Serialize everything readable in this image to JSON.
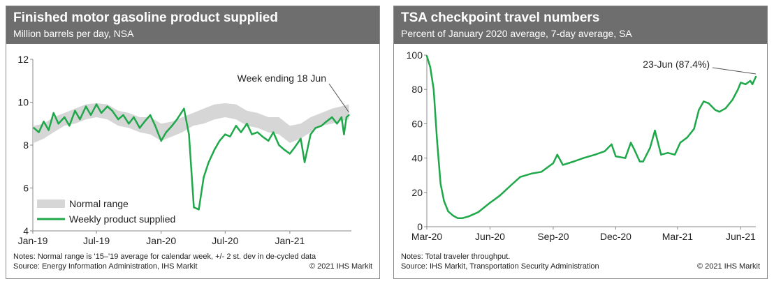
{
  "chart_data": [
    {
      "type": "line",
      "title": "Finished motor gasoline product supplied",
      "subtitle": "Million barrels per day, NSA",
      "x_range": [
        "2019-01-01",
        "2021-06-25"
      ],
      "ylim": [
        4,
        12
      ],
      "y_ticks": [
        "4",
        "6",
        "8",
        "10",
        "12"
      ],
      "x_ticks": [
        {
          "label": "Jan-19",
          "date": "2019-01-01"
        },
        {
          "label": "Jul-19",
          "date": "2019-07-01"
        },
        {
          "label": "Jan-20",
          "date": "2020-01-01"
        },
        {
          "label": "Jul-20",
          "date": "2020-07-01"
        },
        {
          "label": "Jan-21",
          "date": "2021-01-01"
        }
      ],
      "annotation": "Week ending 18 Jun",
      "legend": {
        "position": "bottom-left",
        "band_label": "Normal range",
        "line_label": "Weekly product supplied"
      },
      "band": {
        "name": "Normal range",
        "points": [
          [
            "2019-01-04",
            8.1,
            8.9
          ],
          [
            "2019-02-01",
            8.3,
            9.0
          ],
          [
            "2019-03-01",
            8.6,
            9.3
          ],
          [
            "2019-04-01",
            8.9,
            9.5
          ],
          [
            "2019-05-01",
            9.0,
            9.7
          ],
          [
            "2019-06-01",
            9.2,
            9.9
          ],
          [
            "2019-07-01",
            9.3,
            9.95
          ],
          [
            "2019-08-01",
            9.2,
            9.9
          ],
          [
            "2019-09-01",
            8.9,
            9.6
          ],
          [
            "2019-10-01",
            8.8,
            9.5
          ],
          [
            "2019-11-01",
            8.6,
            9.3
          ],
          [
            "2019-12-01",
            8.5,
            9.3
          ],
          [
            "2020-01-01",
            8.2,
            9.0
          ],
          [
            "2020-02-01",
            8.4,
            9.1
          ],
          [
            "2020-03-01",
            8.6,
            9.3
          ],
          [
            "2020-04-01",
            8.9,
            9.5
          ],
          [
            "2020-05-01",
            9.0,
            9.7
          ],
          [
            "2020-06-01",
            9.2,
            9.9
          ],
          [
            "2020-07-01",
            9.3,
            9.95
          ],
          [
            "2020-08-01",
            9.2,
            9.9
          ],
          [
            "2020-09-01",
            8.9,
            9.6
          ],
          [
            "2020-10-01",
            8.8,
            9.5
          ],
          [
            "2020-11-01",
            8.6,
            9.3
          ],
          [
            "2020-12-01",
            8.5,
            9.3
          ],
          [
            "2021-01-01",
            8.1,
            8.9
          ],
          [
            "2021-02-01",
            8.3,
            9.0
          ],
          [
            "2021-03-01",
            8.6,
            9.3
          ],
          [
            "2021-04-01",
            8.9,
            9.5
          ],
          [
            "2021-05-01",
            9.0,
            9.7
          ],
          [
            "2021-06-18",
            9.2,
            9.9
          ]
        ]
      },
      "series": [
        {
          "name": "Weekly product supplied",
          "points": [
            [
              "2019-01-04",
              8.8
            ],
            [
              "2019-01-18",
              8.6
            ],
            [
              "2019-02-01",
              9.1
            ],
            [
              "2019-02-15",
              8.7
            ],
            [
              "2019-03-01",
              9.5
            ],
            [
              "2019-03-15",
              9.0
            ],
            [
              "2019-04-01",
              9.3
            ],
            [
              "2019-04-15",
              8.9
            ],
            [
              "2019-05-01",
              9.6
            ],
            [
              "2019-05-15",
              9.2
            ],
            [
              "2019-06-01",
              9.8
            ],
            [
              "2019-06-15",
              9.4
            ],
            [
              "2019-07-01",
              9.9
            ],
            [
              "2019-07-15",
              9.5
            ],
            [
              "2019-08-01",
              9.8
            ],
            [
              "2019-08-15",
              9.6
            ],
            [
              "2019-09-01",
              9.2
            ],
            [
              "2019-09-15",
              9.4
            ],
            [
              "2019-10-01",
              9.0
            ],
            [
              "2019-10-15",
              9.3
            ],
            [
              "2019-11-01",
              8.8
            ],
            [
              "2019-11-15",
              9.1
            ],
            [
              "2019-12-01",
              9.4
            ],
            [
              "2019-12-15",
              8.9
            ],
            [
              "2020-01-01",
              8.2
            ],
            [
              "2020-01-15",
              8.6
            ],
            [
              "2020-02-01",
              8.9
            ],
            [
              "2020-02-15",
              9.2
            ],
            [
              "2020-03-06",
              9.7
            ],
            [
              "2020-03-20",
              8.5
            ],
            [
              "2020-03-27",
              6.8
            ],
            [
              "2020-04-03",
              5.1
            ],
            [
              "2020-04-17",
              5.0
            ],
            [
              "2020-05-01",
              6.5
            ],
            [
              "2020-05-15",
              7.2
            ],
            [
              "2020-06-01",
              7.8
            ],
            [
              "2020-06-15",
              8.2
            ],
            [
              "2020-07-01",
              8.5
            ],
            [
              "2020-07-15",
              8.4
            ],
            [
              "2020-08-01",
              8.9
            ],
            [
              "2020-08-15",
              8.6
            ],
            [
              "2020-09-01",
              9.0
            ],
            [
              "2020-09-15",
              8.5
            ],
            [
              "2020-10-01",
              8.6
            ],
            [
              "2020-10-15",
              8.4
            ],
            [
              "2020-11-01",
              8.2
            ],
            [
              "2020-11-15",
              8.6
            ],
            [
              "2020-12-01",
              8.0
            ],
            [
              "2020-12-15",
              7.8
            ],
            [
              "2021-01-01",
              7.6
            ],
            [
              "2021-01-15",
              7.9
            ],
            [
              "2021-02-01",
              8.3
            ],
            [
              "2021-02-12",
              7.2
            ],
            [
              "2021-03-01",
              8.5
            ],
            [
              "2021-03-15",
              8.8
            ],
            [
              "2021-04-01",
              8.9
            ],
            [
              "2021-04-15",
              9.1
            ],
            [
              "2021-05-01",
              9.3
            ],
            [
              "2021-05-15",
              9.0
            ],
            [
              "2021-05-28",
              9.3
            ],
            [
              "2021-06-04",
              8.5
            ],
            [
              "2021-06-11",
              9.3
            ],
            [
              "2021-06-18",
              9.4
            ]
          ]
        }
      ]
    },
    {
      "type": "line",
      "title": "TSA checkpoint travel numbers",
      "subtitle": "Percent of January 2020 average, 7-day average, SA",
      "x_range": [
        "2020-03-01",
        "2021-06-23"
      ],
      "ylim": [
        0,
        100
      ],
      "y_ticks": [
        "0",
        "20",
        "40",
        "60",
        "80",
        "100"
      ],
      "x_ticks": [
        {
          "label": "Mar-20",
          "date": "2020-03-01"
        },
        {
          "label": "Jun-20",
          "date": "2020-06-01"
        },
        {
          "label": "Sep-20",
          "date": "2020-09-01"
        },
        {
          "label": "Dec-20",
          "date": "2020-12-01"
        },
        {
          "label": "Mar-21",
          "date": "2021-03-01"
        },
        {
          "label": "Jun-21",
          "date": "2021-06-01"
        }
      ],
      "annotation": "23-Jun (87.4%)",
      "series": [
        {
          "name": "TSA checkpoint travel numbers",
          "points": [
            [
              "2020-03-01",
              99.5
            ],
            [
              "2020-03-06",
              93
            ],
            [
              "2020-03-11",
              80
            ],
            [
              "2020-03-16",
              50
            ],
            [
              "2020-03-21",
              25
            ],
            [
              "2020-03-26",
              15
            ],
            [
              "2020-04-01",
              9
            ],
            [
              "2020-04-08",
              6.5
            ],
            [
              "2020-04-15",
              5
            ],
            [
              "2020-04-22",
              5
            ],
            [
              "2020-05-01",
              6
            ],
            [
              "2020-05-15",
              8.5
            ],
            [
              "2020-06-01",
              14
            ],
            [
              "2020-06-15",
              18
            ],
            [
              "2020-07-01",
              24
            ],
            [
              "2020-07-15",
              29
            ],
            [
              "2020-08-01",
              31
            ],
            [
              "2020-08-15",
              32
            ],
            [
              "2020-09-01",
              37
            ],
            [
              "2020-09-07",
              42
            ],
            [
              "2020-09-15",
              36
            ],
            [
              "2020-10-01",
              38
            ],
            [
              "2020-10-15",
              40
            ],
            [
              "2020-11-01",
              42
            ],
            [
              "2020-11-15",
              44
            ],
            [
              "2020-11-25",
              48
            ],
            [
              "2020-12-01",
              41
            ],
            [
              "2020-12-15",
              40
            ],
            [
              "2020-12-23",
              49
            ],
            [
              "2020-12-28",
              45
            ],
            [
              "2021-01-05",
              38
            ],
            [
              "2021-01-10",
              38
            ],
            [
              "2021-01-20",
              46
            ],
            [
              "2021-01-27",
              56
            ],
            [
              "2021-02-05",
              42
            ],
            [
              "2021-02-15",
              43
            ],
            [
              "2021-02-25",
              42
            ],
            [
              "2021-03-05",
              49
            ],
            [
              "2021-03-15",
              52
            ],
            [
              "2021-03-25",
              57
            ],
            [
              "2021-04-01",
              68
            ],
            [
              "2021-04-08",
              73
            ],
            [
              "2021-04-15",
              72
            ],
            [
              "2021-04-25",
              68
            ],
            [
              "2021-05-01",
              67
            ],
            [
              "2021-05-10",
              69
            ],
            [
              "2021-05-20",
              74
            ],
            [
              "2021-05-28",
              80
            ],
            [
              "2021-06-01",
              84
            ],
            [
              "2021-06-08",
              83
            ],
            [
              "2021-06-15",
              85
            ],
            [
              "2021-06-18",
              83
            ],
            [
              "2021-06-23",
              87.4
            ]
          ]
        }
      ]
    }
  ],
  "left_panel": {
    "notes": "Notes: Normal range is '15–'19 average for calendar week, +/- 2 st. dev in de-cycled data",
    "source": "Source: Energy Information Administration, IHS Markit",
    "copyright": "© 2021 IHS Markit"
  },
  "right_panel": {
    "notes": "Notes: Total traveler throughput.",
    "source": "Source: IHS Markit, Transportation Security Administration",
    "copyright": "© 2021 IHS Markit"
  },
  "colors": {
    "line": "#1fa84a",
    "band": "#d6d6d6",
    "header": "#6e6e6e",
    "axis": "#888888",
    "text": "#222222"
  }
}
